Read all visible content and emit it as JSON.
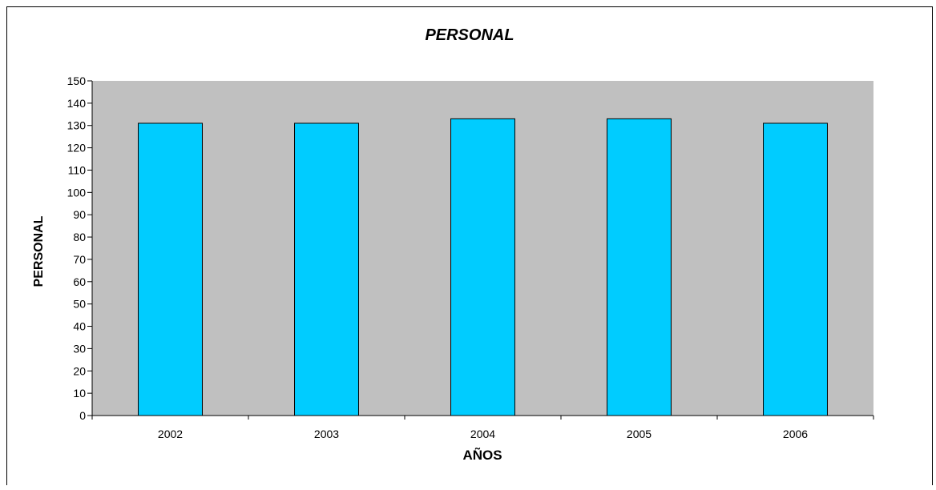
{
  "chart_data": {
    "type": "bar",
    "title": "PERSONAL",
    "xlabel": "AÑOS",
    "ylabel": "PERSONAL",
    "categories": [
      "2002",
      "2003",
      "2004",
      "2005",
      "2006"
    ],
    "values": [
      131,
      131,
      133,
      133,
      131
    ],
    "ylim": [
      0,
      150
    ],
    "ytick_step": 10,
    "grid": false,
    "legend": "none",
    "colors": {
      "bar_fill": "#00ccff",
      "bar_stroke": "#000000",
      "plot_background": "#c0c0c0",
      "axis": "#000000"
    }
  }
}
